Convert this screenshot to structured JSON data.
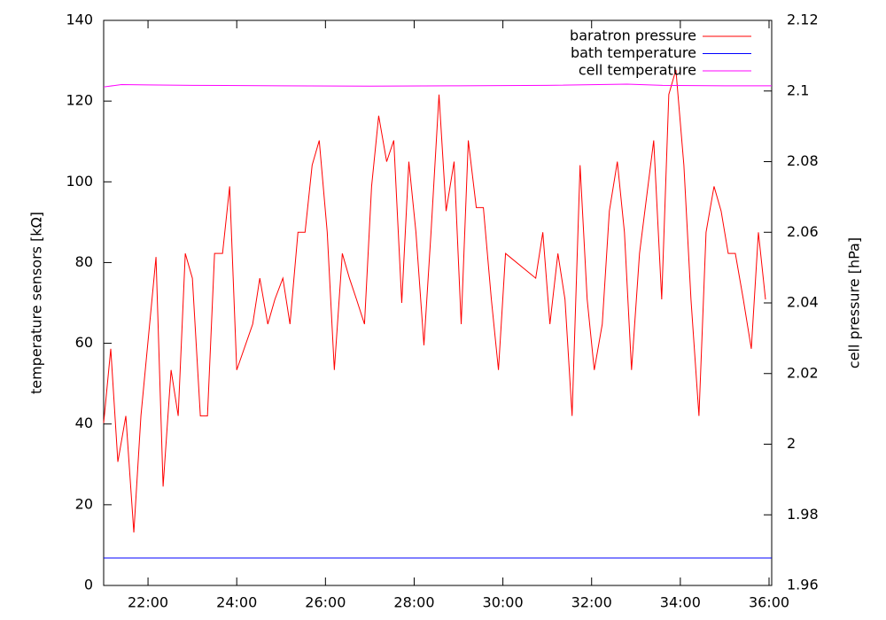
{
  "chart_data": {
    "type": "line",
    "y_label": "temperature sensors [kΩ]",
    "y2_label": "cell pressure [hPa]",
    "xlim": [
      21,
      36.06
    ],
    "xticks": [
      {
        "value": 22,
        "label": "22:00"
      },
      {
        "value": 24,
        "label": "24:00"
      },
      {
        "value": 26,
        "label": "26:00"
      },
      {
        "value": 28,
        "label": "28:00"
      },
      {
        "value": 30,
        "label": "30:00"
      },
      {
        "value": 32,
        "label": "32:00"
      },
      {
        "value": 34,
        "label": "34:00"
      },
      {
        "value": 36,
        "label": "36:00"
      }
    ],
    "ylim": [
      0,
      140
    ],
    "yticks": [
      0,
      20,
      40,
      60,
      80,
      100,
      120,
      140
    ],
    "y2lim": [
      1.96,
      2.12
    ],
    "y2ticks": [
      1.96,
      1.98,
      2,
      2.02,
      2.04,
      2.06,
      2.08,
      2.1,
      2.12
    ],
    "legend": "top-right",
    "series": [
      {
        "name": "baratron pressure",
        "color": "#ff0000",
        "axis": "y2",
        "x": [
          21.0,
          21.16,
          21.32,
          21.5,
          21.68,
          21.84,
          22.18,
          22.34,
          22.52,
          22.68,
          22.84,
          23.0,
          23.18,
          23.34,
          23.5,
          23.68,
          23.84,
          24.0,
          24.36,
          24.52,
          24.7,
          24.86,
          25.04,
          25.2,
          25.38,
          25.54,
          25.7,
          25.86,
          26.04,
          26.2,
          26.38,
          26.54,
          26.7,
          26.88,
          27.04,
          27.2,
          27.38,
          27.54,
          27.72,
          27.88,
          28.04,
          28.22,
          28.38,
          28.56,
          28.72,
          28.9,
          29.06,
          29.22,
          29.4,
          29.56,
          29.74,
          29.9,
          30.06,
          30.74,
          30.9,
          31.06,
          31.24,
          31.4,
          31.56,
          31.74,
          31.9,
          32.06,
          32.24,
          32.4,
          32.58,
          32.74,
          32.9,
          33.08,
          33.4,
          33.58,
          33.74,
          33.9,
          34.08,
          34.24,
          34.42,
          34.58,
          34.76,
          34.92,
          35.08,
          35.24,
          35.42,
          35.6,
          35.76,
          35.92
        ],
        "values": [
          2.006,
          2.027,
          1.995,
          2.008,
          1.975,
          2.008,
          2.053,
          1.988,
          2.021,
          2.008,
          2.054,
          2.047,
          2.008,
          2.008,
          2.054,
          2.054,
          2.073,
          2.021,
          2.034,
          2.047,
          2.034,
          2.041,
          2.047,
          2.034,
          2.06,
          2.06,
          2.079,
          2.086,
          2.06,
          2.021,
          2.054,
          2.047,
          2.041,
          2.034,
          2.073,
          2.093,
          2.08,
          2.086,
          2.04,
          2.08,
          2.06,
          2.028,
          2.06,
          2.099,
          2.066,
          2.08,
          2.034,
          2.086,
          2.067,
          2.067,
          2.041,
          2.021,
          2.054,
          2.047,
          2.06,
          2.034,
          2.054,
          2.041,
          2.008,
          2.079,
          2.041,
          2.021,
          2.034,
          2.066,
          2.08,
          2.06,
          2.021,
          2.054,
          2.086,
          2.041,
          2.099,
          2.106,
          2.079,
          2.041,
          2.008,
          2.06,
          2.073,
          2.066,
          2.054,
          2.054,
          2.041,
          2.027,
          2.06,
          2.041
        ]
      },
      {
        "name": "bath temperature",
        "color": "#0000ff",
        "x": [
          21,
          36.06
        ],
        "values": [
          6.8,
          6.8
        ]
      },
      {
        "name": "cell temperature",
        "color": "#ff00ff",
        "x": [
          21,
          21.4,
          22,
          23,
          25,
          27,
          29,
          31,
          32.8,
          33.6,
          35,
          36.06
        ],
        "values": [
          123.5,
          124.1,
          124.0,
          123.9,
          123.8,
          123.7,
          123.8,
          123.9,
          124.2,
          123.9,
          123.8,
          123.8
        ]
      }
    ]
  }
}
